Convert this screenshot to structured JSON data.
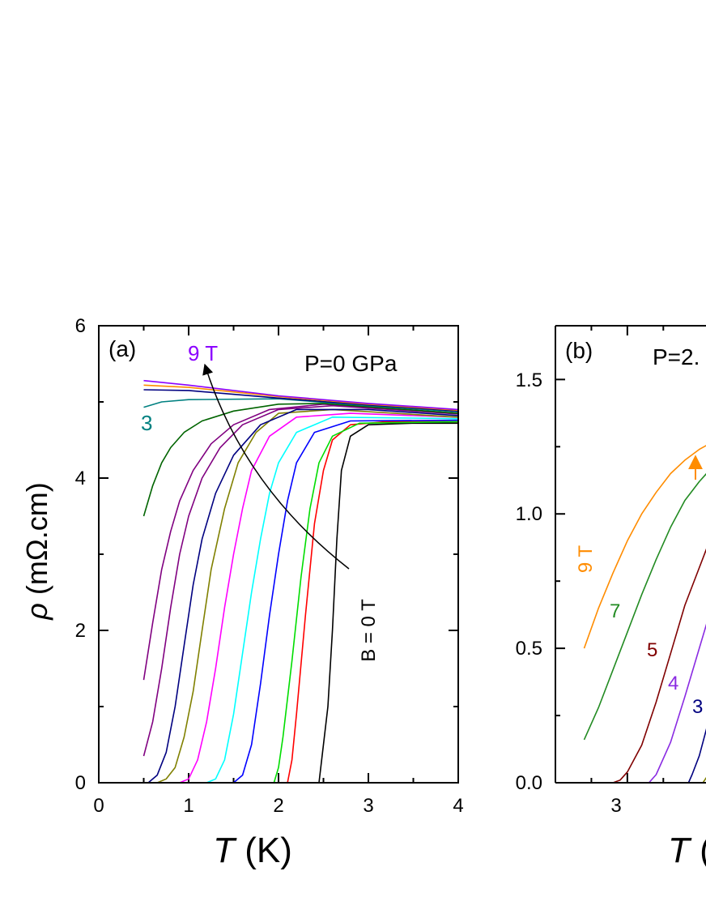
{
  "chart_data": [
    {
      "type": "line",
      "panel_label": "(a)",
      "annotation": "P=0 GPa",
      "xlabel_symbol": "T",
      "xlabel_unit": " (K)",
      "ylabel_symbol": "ρ",
      "ylabel_unit": " (mΩ.cm)",
      "xlim": [
        0,
        4
      ],
      "ylim": [
        0,
        6
      ],
      "xticks": [
        "0",
        "1",
        "2",
        "3",
        "4"
      ],
      "yticks": [
        "0",
        "2",
        "4",
        "6"
      ],
      "labels": {
        "top_field": "9 T",
        "mid_field": "3",
        "zero_field": "B = 0 T"
      },
      "series": [
        {
          "color": "#000000",
          "points": [
            [
              2.45,
              0
            ],
            [
              2.5,
              0.5
            ],
            [
              2.55,
              1.0
            ],
            [
              2.6,
              2.0
            ],
            [
              2.65,
              3.2
            ],
            [
              2.7,
              4.1
            ],
            [
              2.8,
              4.55
            ],
            [
              3.0,
              4.7
            ],
            [
              3.5,
              4.72
            ],
            [
              4.0,
              4.72
            ]
          ]
        },
        {
          "color": "#ff0000",
          "points": [
            [
              2.1,
              0
            ],
            [
              2.15,
              0.3
            ],
            [
              2.2,
              0.9
            ],
            [
              2.3,
              2.2
            ],
            [
              2.4,
              3.4
            ],
            [
              2.5,
              4.1
            ],
            [
              2.6,
              4.5
            ],
            [
              2.8,
              4.7
            ],
            [
              3.2,
              4.74
            ],
            [
              4.0,
              4.74
            ]
          ]
        },
        {
          "color": "#00dd00",
          "points": [
            [
              1.95,
              0
            ],
            [
              2.0,
              0.2
            ],
            [
              2.05,
              0.6
            ],
            [
              2.15,
              1.6
            ],
            [
              2.25,
              2.7
            ],
            [
              2.35,
              3.6
            ],
            [
              2.45,
              4.2
            ],
            [
              2.6,
              4.55
            ],
            [
              2.9,
              4.72
            ],
            [
              4.0,
              4.74
            ]
          ]
        },
        {
          "color": "#0000ff",
          "points": [
            [
              1.5,
              0
            ],
            [
              1.6,
              0.1
            ],
            [
              1.7,
              0.5
            ],
            [
              1.8,
              1.3
            ],
            [
              1.9,
              2.2
            ],
            [
              2.0,
              3.0
            ],
            [
              2.1,
              3.7
            ],
            [
              2.2,
              4.2
            ],
            [
              2.4,
              4.6
            ],
            [
              2.8,
              4.75
            ],
            [
              4.0,
              4.76
            ]
          ]
        },
        {
          "color": "#00ffff",
          "points": [
            [
              1.2,
              0
            ],
            [
              1.3,
              0.05
            ],
            [
              1.4,
              0.3
            ],
            [
              1.5,
              0.9
            ],
            [
              1.6,
              1.7
            ],
            [
              1.7,
              2.5
            ],
            [
              1.8,
              3.2
            ],
            [
              1.9,
              3.8
            ],
            [
              2.0,
              4.2
            ],
            [
              2.2,
              4.6
            ],
            [
              2.6,
              4.8
            ],
            [
              4.0,
              4.78
            ]
          ]
        },
        {
          "color": "#ff00ff",
          "points": [
            [
              0.9,
              0
            ],
            [
              1.0,
              0.05
            ],
            [
              1.1,
              0.3
            ],
            [
              1.2,
              0.8
            ],
            [
              1.3,
              1.5
            ],
            [
              1.4,
              2.3
            ],
            [
              1.5,
              3.0
            ],
            [
              1.6,
              3.6
            ],
            [
              1.7,
              4.1
            ],
            [
              1.9,
              4.55
            ],
            [
              2.2,
              4.8
            ],
            [
              2.8,
              4.85
            ],
            [
              4.0,
              4.8
            ]
          ]
        },
        {
          "color": "#808000",
          "points": [
            [
              0.65,
              0
            ],
            [
              0.75,
              0.05
            ],
            [
              0.85,
              0.2
            ],
            [
              0.95,
              0.6
            ],
            [
              1.05,
              1.2
            ],
            [
              1.15,
              2.0
            ],
            [
              1.25,
              2.8
            ],
            [
              1.4,
              3.6
            ],
            [
              1.55,
              4.2
            ],
            [
              1.75,
              4.6
            ],
            [
              2.0,
              4.85
            ],
            [
              2.6,
              4.9
            ],
            [
              4.0,
              4.8
            ]
          ]
        },
        {
          "color": "#000080",
          "points": [
            [
              0.55,
              0
            ],
            [
              0.65,
              0.1
            ],
            [
              0.75,
              0.4
            ],
            [
              0.85,
              1.0
            ],
            [
              0.95,
              1.8
            ],
            [
              1.05,
              2.6
            ],
            [
              1.15,
              3.2
            ],
            [
              1.3,
              3.8
            ],
            [
              1.5,
              4.3
            ],
            [
              1.8,
              4.7
            ],
            [
              2.2,
              4.9
            ],
            [
              3.0,
              4.9
            ],
            [
              4.0,
              4.82
            ]
          ]
        },
        {
          "color": "#800080",
          "points": [
            [
              0.5,
              0.35
            ],
            [
              0.6,
              0.8
            ],
            [
              0.7,
              1.5
            ],
            [
              0.8,
              2.3
            ],
            [
              0.9,
              3.0
            ],
            [
              1.0,
              3.5
            ],
            [
              1.15,
              4.0
            ],
            [
              1.35,
              4.4
            ],
            [
              1.6,
              4.7
            ],
            [
              2.0,
              4.9
            ],
            [
              2.6,
              4.95
            ],
            [
              4.0,
              4.84
            ]
          ]
        },
        {
          "color": "#800080",
          "points": [
            [
              0.5,
              1.35
            ],
            [
              0.6,
              2.1
            ],
            [
              0.7,
              2.8
            ],
            [
              0.8,
              3.3
            ],
            [
              0.9,
              3.7
            ],
            [
              1.05,
              4.1
            ],
            [
              1.25,
              4.45
            ],
            [
              1.5,
              4.7
            ],
            [
              1.9,
              4.9
            ],
            [
              2.5,
              4.97
            ],
            [
              4.0,
              4.85
            ]
          ]
        },
        {
          "color": "#006400",
          "points": [
            [
              0.5,
              3.5
            ],
            [
              0.6,
              3.9
            ],
            [
              0.7,
              4.2
            ],
            [
              0.8,
              4.4
            ],
            [
              0.95,
              4.6
            ],
            [
              1.15,
              4.75
            ],
            [
              1.5,
              4.88
            ],
            [
              2.0,
              4.97
            ],
            [
              2.5,
              4.98
            ],
            [
              4.0,
              4.85
            ]
          ]
        },
        {
          "color": "#008080",
          "points": [
            [
              0.5,
              4.93
            ],
            [
              0.7,
              5.0
            ],
            [
              1.0,
              5.03
            ],
            [
              2.0,
              5.04
            ],
            [
              3.0,
              4.95
            ],
            [
              4.0,
              4.87
            ]
          ]
        },
        {
          "color": "#000080",
          "points": [
            [
              0.5,
              5.16
            ],
            [
              1.0,
              5.15
            ],
            [
              2.0,
              5.05
            ],
            [
              3.0,
              4.96
            ],
            [
              4.0,
              4.88
            ]
          ]
        },
        {
          "color": "#ff8c00",
          "points": [
            [
              0.5,
              5.22
            ],
            [
              1.0,
              5.19
            ],
            [
              2.0,
              5.07
            ],
            [
              3.0,
              4.97
            ],
            [
              4.0,
              4.89
            ]
          ]
        },
        {
          "color": "#8b00ff",
          "points": [
            [
              0.5,
              5.28
            ],
            [
              1.0,
              5.22
            ],
            [
              2.0,
              5.08
            ],
            [
              3.0,
              4.98
            ],
            [
              4.0,
              4.9
            ]
          ]
        }
      ]
    },
    {
      "type": "line",
      "panel_label": "(b)",
      "annotation": "P=2.",
      "xlabel_symbol": "T",
      "xlabel_unit": " (",
      "xlim": [
        2.0,
        5.5
      ],
      "ylim": [
        0,
        1.7
      ],
      "xticks": [
        "3"
      ],
      "yticks": [
        "0.0",
        "0.5",
        "1.0",
        "1.5"
      ],
      "labels": {
        "f9": "9 T",
        "f7": "7",
        "f5": "5",
        "f4": "4",
        "f3": "3"
      },
      "series": [
        {
          "color": "#ff8c00",
          "points": [
            [
              2.4,
              0.5
            ],
            [
              2.6,
              0.65
            ],
            [
              2.8,
              0.78
            ],
            [
              3.0,
              0.9
            ],
            [
              3.2,
              1.0
            ],
            [
              3.4,
              1.08
            ],
            [
              3.6,
              1.15
            ],
            [
              3.8,
              1.2
            ],
            [
              4.0,
              1.24
            ],
            [
              4.2,
              1.27
            ]
          ]
        },
        {
          "color": "#228b22",
          "points": [
            [
              2.4,
              0.16
            ],
            [
              2.6,
              0.28
            ],
            [
              2.8,
              0.42
            ],
            [
              3.0,
              0.56
            ],
            [
              3.2,
              0.7
            ],
            [
              3.4,
              0.83
            ],
            [
              3.6,
              0.95
            ],
            [
              3.8,
              1.05
            ],
            [
              4.0,
              1.12
            ],
            [
              4.2,
              1.18
            ]
          ]
        },
        {
          "color": "#800000",
          "points": [
            [
              2.4,
              0
            ],
            [
              2.8,
              0
            ],
            [
              2.9,
              0.01
            ],
            [
              3.0,
              0.04
            ],
            [
              3.2,
              0.14
            ],
            [
              3.4,
              0.3
            ],
            [
              3.6,
              0.48
            ],
            [
              3.8,
              0.66
            ],
            [
              4.0,
              0.8
            ],
            [
              4.1,
              0.87
            ],
            [
              4.2,
              0.93
            ]
          ]
        },
        {
          "color": "#8a2be2",
          "points": [
            [
              2.4,
              0
            ],
            [
              3.3,
              0
            ],
            [
              3.4,
              0.03
            ],
            [
              3.6,
              0.15
            ],
            [
              3.8,
              0.32
            ],
            [
              4.0,
              0.5
            ],
            [
              4.1,
              0.59
            ],
            [
              4.2,
              0.67
            ]
          ]
        },
        {
          "color": "#000080",
          "points": [
            [
              2.4,
              0
            ],
            [
              3.85,
              0
            ],
            [
              3.9,
              0.03
            ],
            [
              4.0,
              0.1
            ],
            [
              4.1,
              0.2
            ],
            [
              4.2,
              0.28
            ]
          ]
        },
        {
          "color": "#808000",
          "points": [
            [
              2.4,
              0
            ],
            [
              4.05,
              0
            ],
            [
              4.1,
              0.02
            ],
            [
              4.2,
              0.06
            ]
          ]
        }
      ]
    }
  ]
}
